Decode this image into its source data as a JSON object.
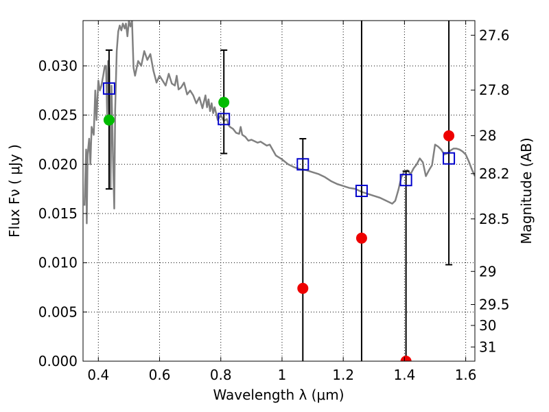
{
  "chart_data": {
    "type": "scatter",
    "xlabel": "Wavelength  λ (μm)",
    "ylabel": "Flux  Fν  ( μJy )",
    "y2label": "Magnitude (AB)",
    "xlim": [
      0.35,
      1.63
    ],
    "ylim": [
      0.0,
      0.0346
    ],
    "grid": true,
    "x_ticks": [
      {
        "value": 0.4,
        "label": "0.4"
      },
      {
        "value": 0.6,
        "label": "0.6"
      },
      {
        "value": 0.8,
        "label": "0.8"
      },
      {
        "value": 1.0,
        "label": "1"
      },
      {
        "value": 1.2,
        "label": "1.2"
      },
      {
        "value": 1.4,
        "label": "1.4"
      },
      {
        "value": 1.6,
        "label": "1.6"
      }
    ],
    "y_ticks": [
      {
        "value": 0.0,
        "label": "0.000"
      },
      {
        "value": 0.005,
        "label": "0.005"
      },
      {
        "value": 0.01,
        "label": "0.010"
      },
      {
        "value": 0.015,
        "label": "0.015"
      },
      {
        "value": 0.02,
        "label": "0.020"
      },
      {
        "value": 0.025,
        "label": "0.025"
      },
      {
        "value": 0.03,
        "label": "0.030"
      }
    ],
    "y2_ticks": [
      {
        "mag": 27.6,
        "label": "27.6"
      },
      {
        "mag": 27.8,
        "label": "27.8"
      },
      {
        "mag": 28.0,
        "label": "28"
      },
      {
        "mag": 28.2,
        "label": "28.2"
      },
      {
        "mag": 28.5,
        "label": "28.5"
      },
      {
        "mag": 29.0,
        "label": "29"
      },
      {
        "mag": 29.5,
        "label": "29.5"
      },
      {
        "mag": 30.0,
        "label": "30"
      },
      {
        "mag": 31.0,
        "label": "31"
      }
    ],
    "series": [
      {
        "kind": "model",
        "color": "#808080",
        "points": [
          [
            0.355,
            0.0158
          ],
          [
            0.36,
            0.0215
          ],
          [
            0.362,
            0.014
          ],
          [
            0.365,
            0.021
          ],
          [
            0.37,
            0.0226
          ],
          [
            0.374,
            0.02
          ],
          [
            0.378,
            0.0238
          ],
          [
            0.385,
            0.023
          ],
          [
            0.39,
            0.0275
          ],
          [
            0.394,
            0.0245
          ],
          [
            0.4,
            0.0285
          ],
          [
            0.405,
            0.0275
          ],
          [
            0.41,
            0.028
          ],
          [
            0.416,
            0.029
          ],
          [
            0.421,
            0.03
          ],
          [
            0.425,
            0.03
          ],
          [
            0.429,
            0.025
          ],
          [
            0.432,
            0.0305
          ],
          [
            0.436,
            0.0297
          ],
          [
            0.44,
            0.0175
          ],
          [
            0.443,
            0.028
          ],
          [
            0.448,
            0.0205
          ],
          [
            0.452,
            0.0155
          ],
          [
            0.455,
            0.0255
          ],
          [
            0.46,
            0.0315
          ],
          [
            0.465,
            0.0335
          ],
          [
            0.47,
            0.0341
          ],
          [
            0.475,
            0.0336
          ],
          [
            0.48,
            0.0343
          ],
          [
            0.486,
            0.0338
          ],
          [
            0.49,
            0.0343
          ],
          [
            0.495,
            0.033
          ],
          [
            0.5,
            0.0346
          ],
          [
            0.505,
            0.034
          ],
          [
            0.51,
            0.0346
          ],
          [
            0.515,
            0.0298
          ],
          [
            0.52,
            0.029
          ],
          [
            0.53,
            0.0305
          ],
          [
            0.54,
            0.03
          ],
          [
            0.55,
            0.0315
          ],
          [
            0.56,
            0.0306
          ],
          [
            0.57,
            0.0312
          ],
          [
            0.58,
            0.0295
          ],
          [
            0.59,
            0.0283
          ],
          [
            0.6,
            0.029
          ],
          [
            0.61,
            0.0285
          ],
          [
            0.62,
            0.028
          ],
          [
            0.63,
            0.0292
          ],
          [
            0.64,
            0.0282
          ],
          [
            0.65,
            0.028
          ],
          [
            0.656,
            0.029
          ],
          [
            0.662,
            0.0276
          ],
          [
            0.67,
            0.0278
          ],
          [
            0.68,
            0.0283
          ],
          [
            0.69,
            0.0271
          ],
          [
            0.7,
            0.0275
          ],
          [
            0.71,
            0.027
          ],
          [
            0.72,
            0.0262
          ],
          [
            0.73,
            0.0268
          ],
          [
            0.74,
            0.0257
          ],
          [
            0.75,
            0.027
          ],
          [
            0.755,
            0.0258
          ],
          [
            0.76,
            0.0266
          ],
          [
            0.765,
            0.0254
          ],
          [
            0.77,
            0.0262
          ],
          [
            0.775,
            0.0252
          ],
          [
            0.78,
            0.0258
          ],
          [
            0.79,
            0.0245
          ],
          [
            0.8,
            0.025
          ],
          [
            0.81,
            0.0244
          ],
          [
            0.82,
            0.0246
          ],
          [
            0.825,
            0.024
          ],
          [
            0.83,
            0.0238
          ],
          [
            0.84,
            0.0236
          ],
          [
            0.85,
            0.0232
          ],
          [
            0.86,
            0.0231
          ],
          [
            0.865,
            0.0238
          ],
          [
            0.87,
            0.023
          ],
          [
            0.88,
            0.0228
          ],
          [
            0.89,
            0.0224
          ],
          [
            0.9,
            0.0225
          ],
          [
            0.92,
            0.0222
          ],
          [
            0.93,
            0.0223
          ],
          [
            0.95,
            0.0219
          ],
          [
            0.96,
            0.022
          ],
          [
            0.98,
            0.0209
          ],
          [
            1.0,
            0.0205
          ],
          [
            1.02,
            0.02
          ],
          [
            1.04,
            0.0197
          ],
          [
            1.06,
            0.0195
          ],
          [
            1.08,
            0.0194
          ],
          [
            1.1,
            0.0192
          ],
          [
            1.12,
            0.019
          ],
          [
            1.14,
            0.0187
          ],
          [
            1.16,
            0.0183
          ],
          [
            1.18,
            0.018
          ],
          [
            1.2,
            0.0178
          ],
          [
            1.22,
            0.0176
          ],
          [
            1.24,
            0.0175
          ],
          [
            1.26,
            0.0172
          ],
          [
            1.28,
            0.017
          ],
          [
            1.3,
            0.0168
          ],
          [
            1.32,
            0.0166
          ],
          [
            1.34,
            0.0163
          ],
          [
            1.36,
            0.016
          ],
          [
            1.37,
            0.0163
          ],
          [
            1.38,
            0.0174
          ],
          [
            1.39,
            0.0187
          ],
          [
            1.4,
            0.0193
          ],
          [
            1.41,
            0.0194
          ],
          [
            1.42,
            0.019
          ],
          [
            1.43,
            0.0196
          ],
          [
            1.44,
            0.02
          ],
          [
            1.45,
            0.0206
          ],
          [
            1.46,
            0.0202
          ],
          [
            1.47,
            0.0188
          ],
          [
            1.48,
            0.0194
          ],
          [
            1.49,
            0.0199
          ],
          [
            1.5,
            0.022
          ],
          [
            1.51,
            0.0218
          ],
          [
            1.52,
            0.0215
          ],
          [
            1.53,
            0.021
          ],
          [
            1.54,
            0.0211
          ],
          [
            1.55,
            0.0214
          ],
          [
            1.56,
            0.0216
          ],
          [
            1.57,
            0.0216
          ],
          [
            1.58,
            0.0215
          ],
          [
            1.59,
            0.0213
          ],
          [
            1.6,
            0.021
          ],
          [
            1.61,
            0.0203
          ],
          [
            1.62,
            0.0195
          ],
          [
            1.63,
            0.0188
          ]
        ]
      },
      {
        "kind": "synthetic",
        "marker": "open-square",
        "color": "#0000cc",
        "points": [
          [
            0.435,
            0.0277
          ],
          [
            0.81,
            0.0246
          ],
          [
            1.068,
            0.02
          ],
          [
            1.26,
            0.0173
          ],
          [
            1.405,
            0.0184
          ],
          [
            1.545,
            0.0206
          ]
        ]
      },
      {
        "kind": "observed-error",
        "color": "#000000",
        "points": [
          {
            "x": 0.435,
            "lo": 0.0175,
            "hi": 0.0316,
            "capped": true
          },
          {
            "x": 0.81,
            "lo": 0.0211,
            "hi": 0.0316,
            "capped": true
          },
          {
            "x": 1.068,
            "lo": 0.0,
            "hi": 0.0226,
            "capped": true
          },
          {
            "x": 1.26,
            "lo": 0.0,
            "hi": 0.0346,
            "capped": false
          },
          {
            "x": 1.405,
            "lo": 0.0,
            "hi": 0.0193,
            "capped": true
          },
          {
            "x": 1.545,
            "lo": 0.0098,
            "hi": 0.0346,
            "capped": true
          }
        ]
      },
      {
        "kind": "detection",
        "marker": "filled-circle",
        "color": "#00bb00",
        "points": [
          [
            0.435,
            0.0245
          ],
          [
            0.81,
            0.0263
          ]
        ]
      },
      {
        "kind": "non-detection",
        "marker": "filled-circle",
        "color": "#ee0000",
        "points": [
          [
            1.068,
            0.0074
          ],
          [
            1.26,
            0.0125
          ],
          [
            1.405,
            0.0
          ],
          [
            1.545,
            0.0229
          ]
        ]
      }
    ]
  }
}
